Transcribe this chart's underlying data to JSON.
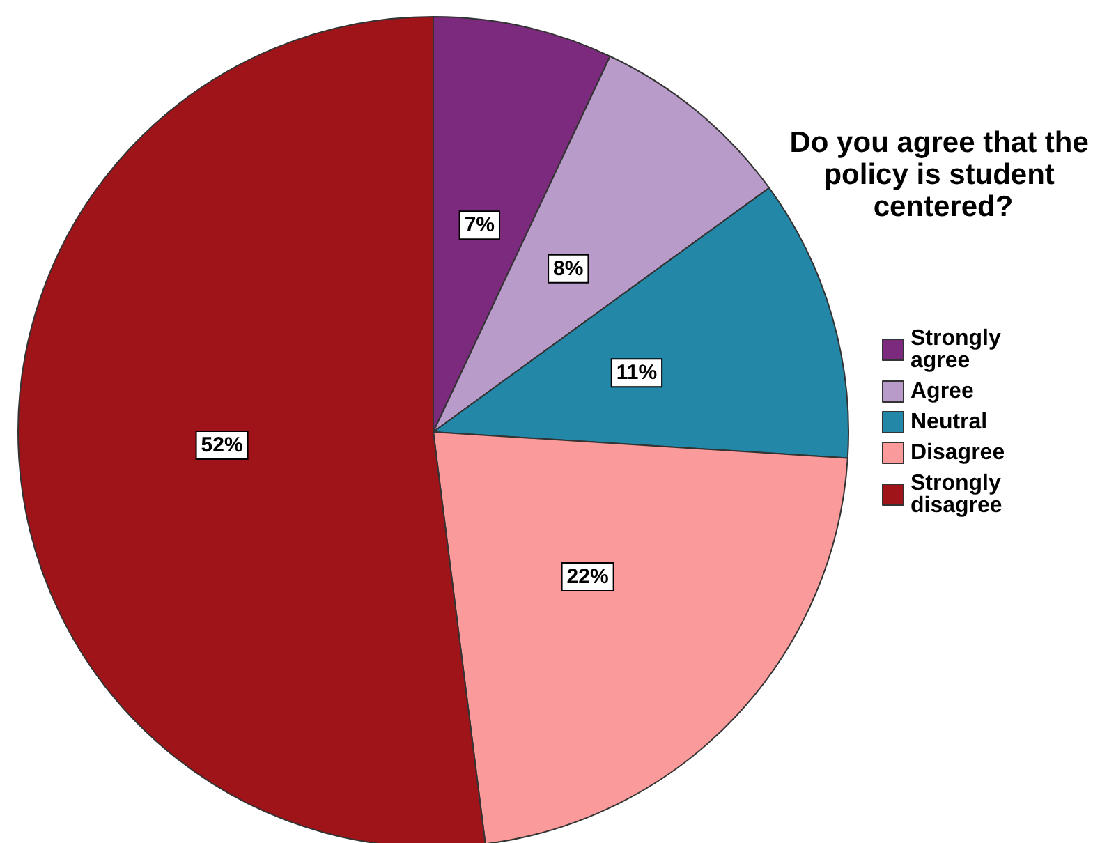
{
  "chart_data": {
    "type": "pie",
    "legend_title": "Do you agree that the policy is student centered?",
    "categories": [
      "Strongly agree",
      "Agree",
      "Neutral",
      "Disagree",
      "Strongly disagree"
    ],
    "values": [
      7,
      8,
      11,
      22,
      52
    ],
    "colors": [
      "#7b2a7e",
      "#b89bc9",
      "#2387a8",
      "#fb9a9a",
      "#9e1418"
    ],
    "value_labels": [
      "7%",
      "8%",
      "11%",
      "22%",
      "52%"
    ],
    "legend": "right"
  }
}
